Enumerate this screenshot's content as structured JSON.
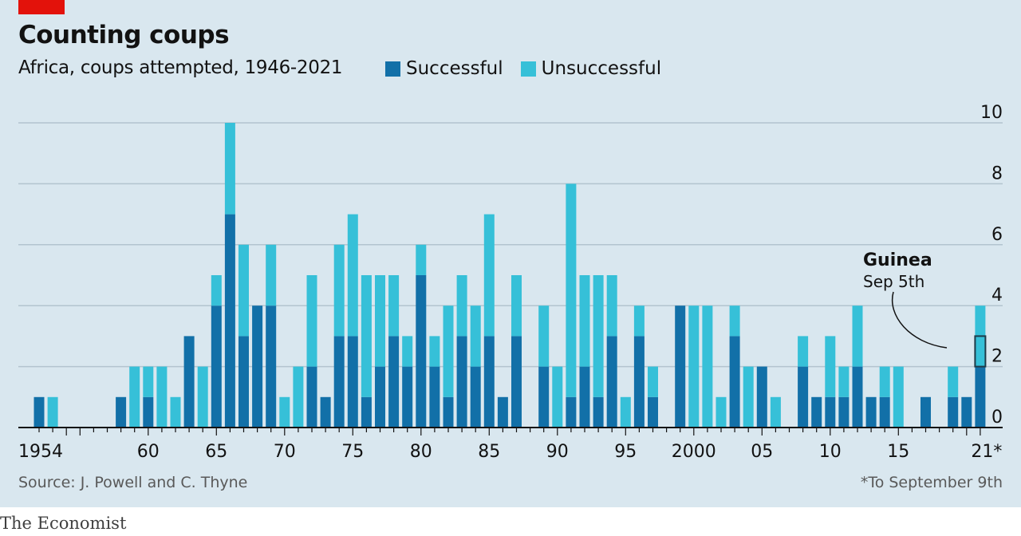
{
  "header": {
    "title": "Counting coups",
    "subtitle": "Africa, coups attempted, 1946-2021"
  },
  "legend": [
    {
      "label": "Successful",
      "color": "#1270a8"
    },
    {
      "label": "Unsuccessful",
      "color": "#36c0d8"
    }
  ],
  "footer": {
    "source": "Source: J. Powell and C. Thyne",
    "note": "*To September 9th",
    "brand": "The Economist"
  },
  "colors": {
    "successful": "#1270a8",
    "unsuccessful": "#36c0d8",
    "highlight": "#1f3a48",
    "background": "#d9e7ef",
    "brand_red": "#e3120b"
  },
  "chart_data": {
    "type": "bar",
    "stacked": true,
    "x": [
      1952,
      1953,
      1954,
      1955,
      1956,
      1957,
      1958,
      1959,
      1960,
      1961,
      1962,
      1963,
      1964,
      1965,
      1966,
      1967,
      1968,
      1969,
      1970,
      1971,
      1972,
      1973,
      1974,
      1975,
      1976,
      1977,
      1978,
      1979,
      1980,
      1981,
      1982,
      1983,
      1984,
      1985,
      1986,
      1987,
      1988,
      1989,
      1990,
      1991,
      1992,
      1993,
      1994,
      1995,
      1996,
      1997,
      1998,
      1999,
      2000,
      2001,
      2002,
      2003,
      2004,
      2005,
      2006,
      2007,
      2008,
      2009,
      2010,
      2011,
      2012,
      2013,
      2014,
      2015,
      2016,
      2017,
      2018,
      2019,
      2020,
      2021
    ],
    "series": [
      {
        "name": "Successful",
        "values": [
          1,
          0,
          0,
          0,
          0,
          0,
          1,
          0,
          1,
          0,
          0,
          3,
          0,
          4,
          7,
          3,
          4,
          4,
          0,
          0,
          2,
          1,
          3,
          3,
          1,
          2,
          3,
          2,
          5,
          2,
          1,
          3,
          2,
          3,
          1,
          3,
          0,
          2,
          0,
          1,
          2,
          1,
          3,
          0,
          3,
          1,
          0,
          4,
          0,
          0,
          0,
          3,
          0,
          2,
          0,
          0,
          2,
          1,
          1,
          1,
          2,
          1,
          1,
          0,
          0,
          1,
          0,
          1,
          1,
          2
        ]
      },
      {
        "name": "Unsuccessful",
        "values": [
          0,
          1,
          0,
          0,
          0,
          0,
          0,
          2,
          1,
          2,
          1,
          0,
          2,
          1,
          3,
          3,
          0,
          2,
          1,
          2,
          3,
          0,
          3,
          4,
          4,
          3,
          2,
          1,
          1,
          1,
          3,
          2,
          2,
          4,
          0,
          2,
          0,
          2,
          2,
          7,
          3,
          4,
          2,
          1,
          1,
          1,
          0,
          0,
          4,
          4,
          1,
          1,
          2,
          0,
          1,
          0,
          1,
          0,
          2,
          1,
          2,
          0,
          1,
          2,
          0,
          0,
          0,
          1,
          0,
          2
        ]
      }
    ],
    "tick_labels_x": [
      {
        "year": 1954,
        "label": "1954"
      },
      {
        "year": 1960,
        "label": "60"
      },
      {
        "year": 1965,
        "label": "65"
      },
      {
        "year": 1970,
        "label": "70"
      },
      {
        "year": 1975,
        "label": "75"
      },
      {
        "year": 1980,
        "label": "80"
      },
      {
        "year": 1985,
        "label": "85"
      },
      {
        "year": 1990,
        "label": "90"
      },
      {
        "year": 1995,
        "label": "95"
      },
      {
        "year": 2000,
        "label": "2000"
      },
      {
        "year": 2005,
        "label": "05"
      },
      {
        "year": 2010,
        "label": "10"
      },
      {
        "year": 2015,
        "label": "15"
      },
      {
        "year": 2021,
        "label": "21*"
      }
    ],
    "yticks": [
      0,
      2,
      4,
      6,
      8,
      10
    ],
    "ylim": [
      0,
      10
    ],
    "grid": true,
    "axis_side": "right",
    "annotation": {
      "year": 2021,
      "title": "Guinea",
      "subtitle": "Sep 5th",
      "range": [
        2,
        3
      ]
    }
  }
}
